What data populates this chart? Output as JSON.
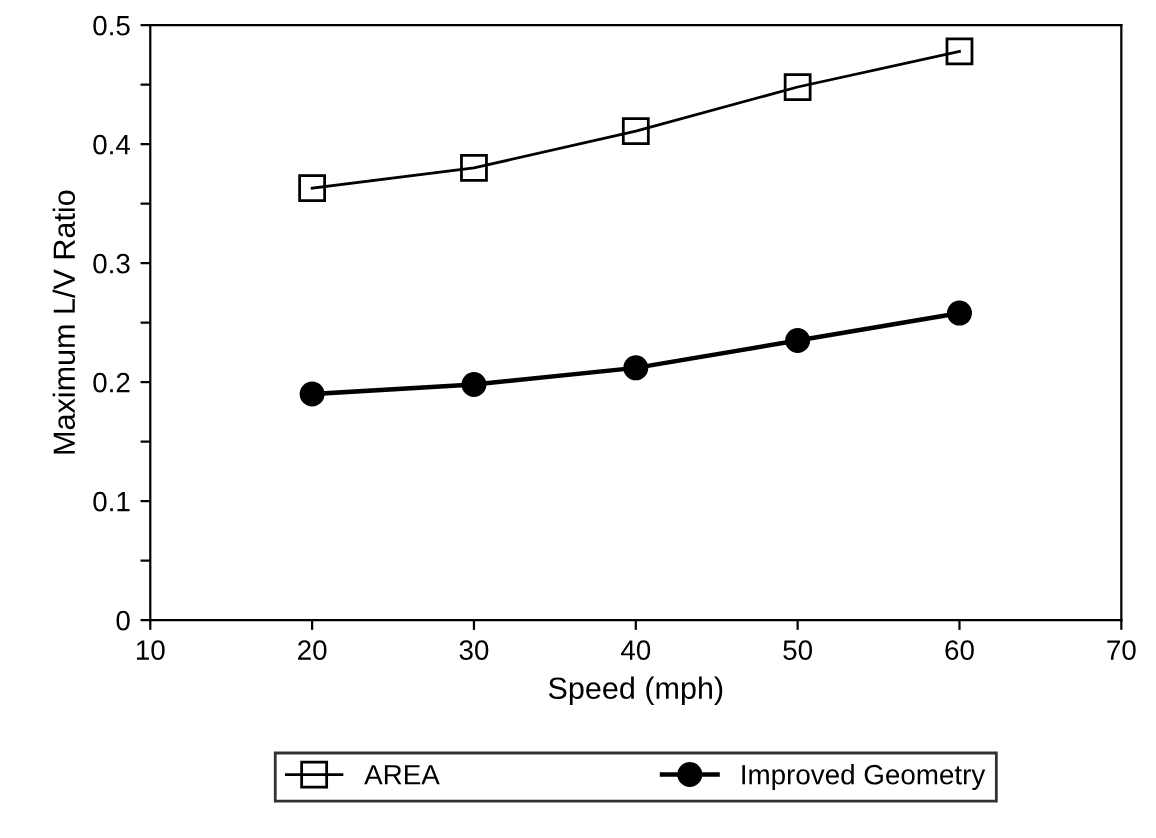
{
  "chart_data": {
    "type": "line",
    "xlabel": "Speed (mph)",
    "ylabel": "Maximum L/V Ratio",
    "x": [
      20,
      30,
      40,
      50,
      60
    ],
    "series": [
      {
        "name": "AREA",
        "color": "#000000",
        "marker": "square",
        "values": [
          0.363,
          0.38,
          0.411,
          0.448,
          0.478
        ]
      },
      {
        "name": "Improved Geometry",
        "color": "#000000",
        "marker": "circle",
        "values": [
          0.19,
          0.198,
          0.212,
          0.235,
          0.258
        ]
      }
    ],
    "xlim": [
      10,
      70
    ],
    "xticks": [
      10,
      20,
      30,
      40,
      50,
      60,
      70
    ],
    "ylim": [
      0,
      0.5
    ],
    "yticks": [
      0,
      {
        "value": 0.05,
        "label": null
      },
      0.1,
      {
        "value": 0.15,
        "label": null
      },
      0.2,
      {
        "value": 0.25,
        "label": null
      },
      0.3,
      {
        "value": 0.35,
        "label": null
      },
      0.4,
      {
        "value": 0.45,
        "label": null
      },
      0.5
    ],
    "grid": false,
    "legend": "bottom",
    "line_style": "solid"
  }
}
